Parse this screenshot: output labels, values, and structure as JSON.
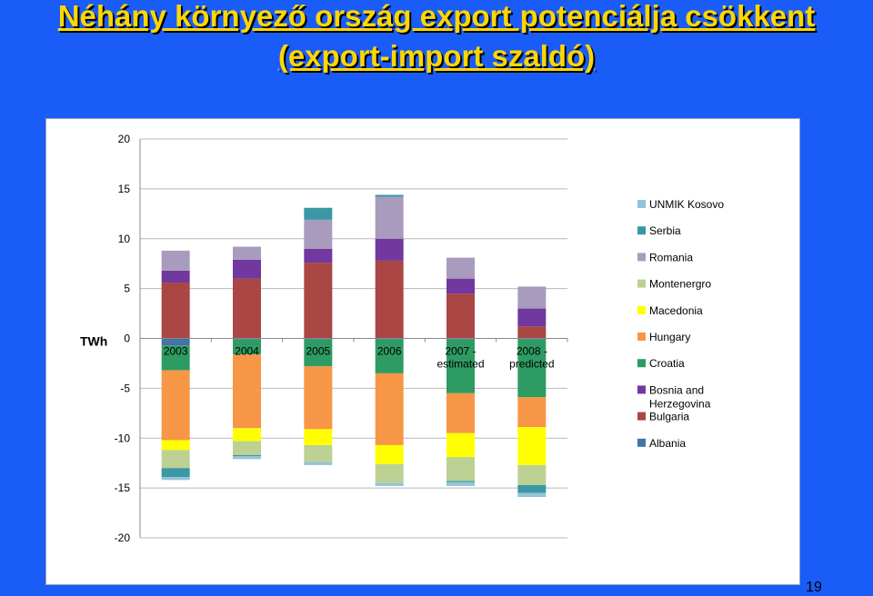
{
  "slide": {
    "title_line1": "Néhány környező ország export potenciálja csökkent ",
    "title_line2": "(export-import szaldó)",
    "page_number": "19",
    "background": "#1a5cf8",
    "title_color": "#ffd700"
  },
  "chart_data": {
    "type": "bar",
    "stacked": true,
    "ylabel": "TWh",
    "ylim": [
      -20,
      20
    ],
    "yticks": [
      20,
      15,
      10,
      5,
      0,
      -5,
      -10,
      -15,
      -20
    ],
    "grid": true,
    "legend_position": "right",
    "categories": [
      [
        "2003"
      ],
      [
        "2004"
      ],
      [
        "2005"
      ],
      [
        "2006"
      ],
      [
        "2007 -",
        "estimated"
      ],
      [
        "2008 -",
        "predicted"
      ]
    ],
    "series": [
      {
        "name": "Albania",
        "color": "#4572a7",
        "values": [
          -0.7,
          -0.1,
          -0.1,
          -0.1,
          -0.1,
          -0.1
        ]
      },
      {
        "name": "Bulgaria",
        "color": "#aa4643",
        "values": [
          5.6,
          6.0,
          7.6,
          7.8,
          4.5,
          1.2
        ]
      },
      {
        "name": "Bosnia and Herzegovina",
        "color": "#71389f",
        "values": [
          1.2,
          1.9,
          1.4,
          2.2,
          1.5,
          1.8
        ]
      },
      {
        "name": "Croatia",
        "color": "#2e9b63",
        "values": [
          -2.5,
          -1.5,
          -2.7,
          -3.4,
          -5.4,
          -5.8
        ]
      },
      {
        "name": "Hungary",
        "color": "#f79646",
        "values": [
          -7.0,
          -7.4,
          -6.3,
          -7.2,
          -4.0,
          -3.0
        ]
      },
      {
        "name": "Macedonia",
        "color": "#ffff00",
        "values": [
          -1.0,
          -1.3,
          -1.6,
          -1.9,
          -2.4,
          -3.8
        ]
      },
      {
        "name": "Montenergro",
        "color": "#bcd193",
        "values": [
          -1.8,
          -1.4,
          -1.7,
          -1.9,
          -2.4,
          -2.0
        ]
      },
      {
        "name": "Romania",
        "color": "#a99bbd",
        "values": [
          2.0,
          1.3,
          2.9,
          4.2,
          2.1,
          2.2
        ]
      },
      {
        "name": "Serbia",
        "color": "#3b97a6",
        "values": [
          -0.9,
          -0.1,
          1.2,
          0.2,
          -0.1,
          -0.8
        ]
      },
      {
        "name": "UNMIK Kosovo",
        "color": "#93c4d8",
        "values": [
          -0.3,
          -0.3,
          -0.3,
          -0.3,
          -0.4,
          -0.4
        ]
      }
    ]
  }
}
